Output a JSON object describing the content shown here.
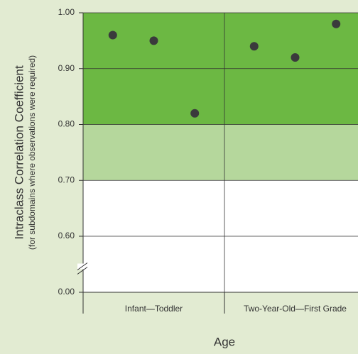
{
  "chart_data": {
    "type": "dot",
    "x_label": "Age",
    "y_label": "Intraclass Correlation Coefficient",
    "y_sublabel": "(for subdomains where observations were required)",
    "categories": [
      "Infant—Toddler",
      "Two-Year-Old—First Grade"
    ],
    "values": [
      [
        0.96,
        0.95,
        0.82
      ],
      [
        0.94,
        0.92,
        0.98
      ]
    ],
    "color": "#3a3a3c",
    "ylim": [
      0,
      1.0
    ],
    "ybreak": [
      0,
      0.6
    ],
    "yticks": [
      {
        "value": 0,
        "label": "0.00"
      },
      {
        "value": 0.6,
        "label": "0.60"
      },
      {
        "value": 0.7,
        "label": "0.70"
      },
      {
        "value": 0.8,
        "label": "0.80"
      },
      {
        "value": 0.9,
        "label": "0.90"
      },
      {
        "value": 1.0,
        "label": "1.00"
      }
    ],
    "bands": [
      {
        "from": 0.8,
        "to": 1.0,
        "color": "#6cb843"
      },
      {
        "from": 0.7,
        "to": 0.8,
        "color": "#b5d79c"
      }
    ],
    "grid": true
  }
}
